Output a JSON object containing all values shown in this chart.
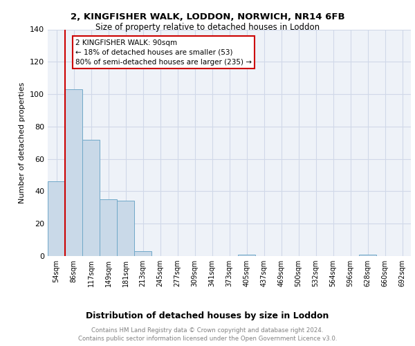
{
  "title1": "2, KINGFISHER WALK, LODDON, NORWICH, NR14 6FB",
  "title2": "Size of property relative to detached houses in Loddon",
  "xlabel": "Distribution of detached houses by size in Loddon",
  "ylabel": "Number of detached properties",
  "bar_values": [
    46,
    103,
    72,
    35,
    34,
    3,
    0,
    0,
    0,
    0,
    0,
    1,
    0,
    0,
    0,
    0,
    0,
    0,
    1,
    0,
    0
  ],
  "bar_labels": [
    "54sqm",
    "86sqm",
    "117sqm",
    "149sqm",
    "181sqm",
    "213sqm",
    "245sqm",
    "277sqm",
    "309sqm",
    "341sqm",
    "373sqm",
    "405sqm",
    "437sqm",
    "469sqm",
    "500sqm",
    "532sqm",
    "564sqm",
    "596sqm",
    "628sqm",
    "660sqm",
    "692sqm"
  ],
  "bar_color": "#c9d9e8",
  "bar_edge_color": "#6fa8c8",
  "ylim": [
    0,
    140
  ],
  "yticks": [
    0,
    20,
    40,
    60,
    80,
    100,
    120,
    140
  ],
  "red_line_x": 0.5,
  "annotation_line1": "2 KINGFISHER WALK: 90sqm",
  "annotation_line2": "← 18% of detached houses are smaller (53)",
  "annotation_line3": "80% of semi-detached houses are larger (235) →",
  "red_line_color": "#cc0000",
  "annotation_box_edge_color": "#cc0000",
  "grid_color": "#d0d8e8",
  "background_color": "#eef2f8",
  "footer_line1": "Contains HM Land Registry data © Crown copyright and database right 2024.",
  "footer_line2": "Contains public sector information licensed under the Open Government Licence v3.0."
}
